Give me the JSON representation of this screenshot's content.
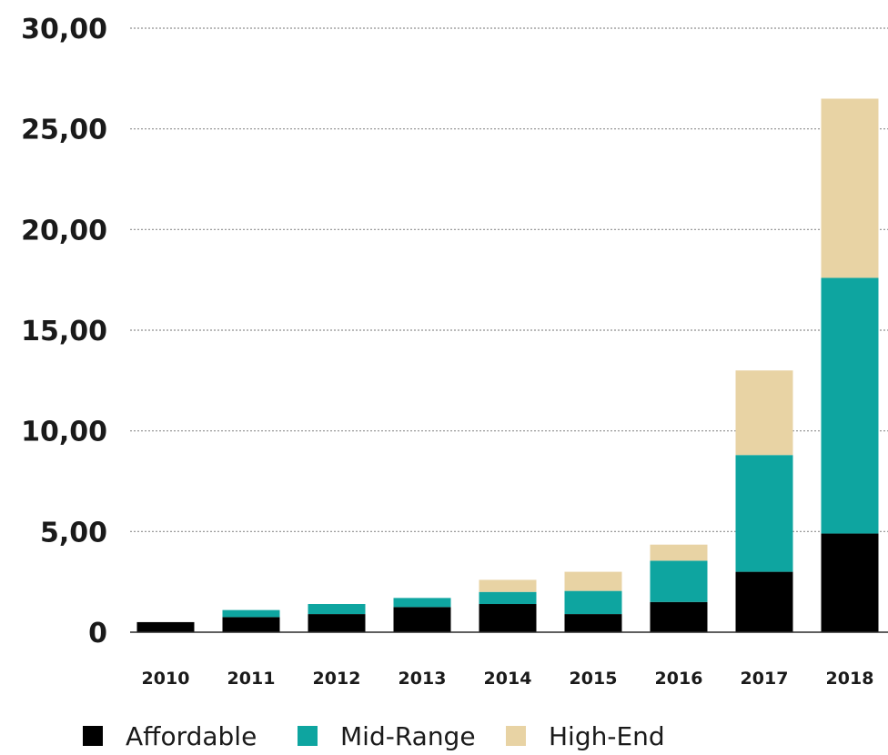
{
  "chart_data": {
    "type": "bar",
    "stacked": true,
    "categories": [
      "2010",
      "2011",
      "2012",
      "2013",
      "2014",
      "2015",
      "2016",
      "2017",
      "2018"
    ],
    "series": [
      {
        "name": "Affordable",
        "color": "#000000",
        "values": [
          0.5,
          0.75,
          0.9,
          1.25,
          1.4,
          0.9,
          1.5,
          3.0,
          4.9
        ]
      },
      {
        "name": "Mid-Range",
        "color": "#0ea5a0",
        "values": [
          0.0,
          0.35,
          0.5,
          0.45,
          0.6,
          1.15,
          2.05,
          5.8,
          12.7
        ]
      },
      {
        "name": "High-End",
        "color": "#e8d3a4",
        "values": [
          0.0,
          0.0,
          0.0,
          0.0,
          0.6,
          0.95,
          0.8,
          4.2,
          8.9
        ]
      }
    ],
    "yticks": [
      "0",
      "5,00",
      "10,00",
      "15,00",
      "20,00",
      "25,00",
      "30,00"
    ],
    "ytick_values": [
      0,
      5,
      10,
      15,
      20,
      25,
      30
    ],
    "ylim": [
      0,
      30
    ],
    "grid": true,
    "legend_position": "bottom-left",
    "title": "",
    "xlabel": "",
    "ylabel": ""
  }
}
